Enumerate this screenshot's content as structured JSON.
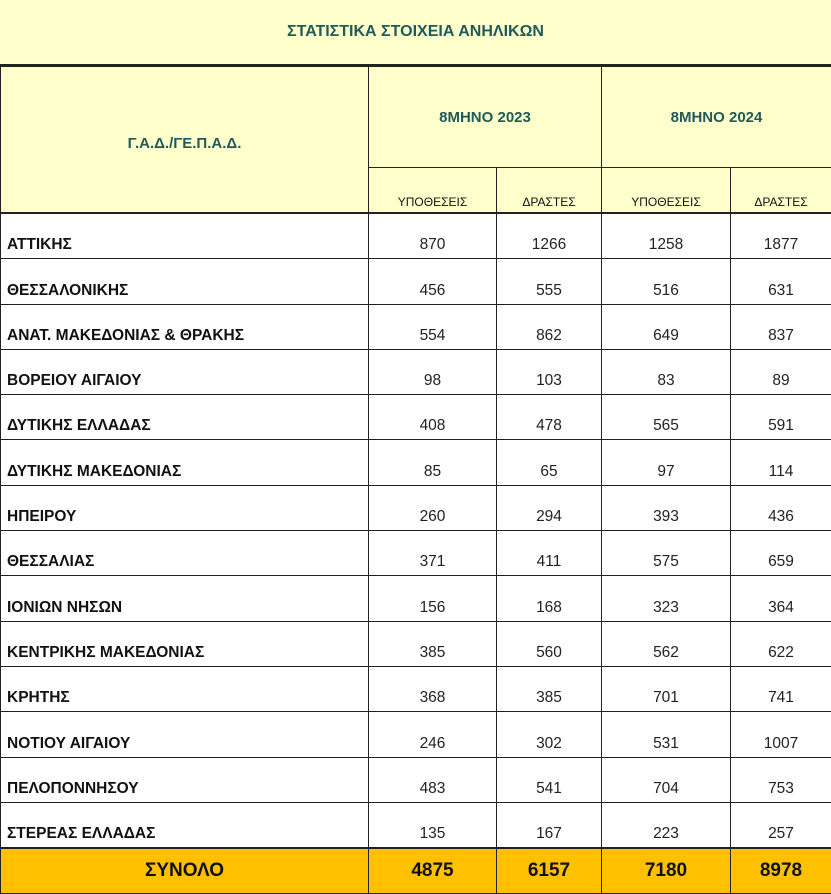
{
  "title": "ΣΤΑΤΙΣΤΙΚΑ ΣΤΟΙΧΕΙΑ ΑΝΗΛΙΚΩΝ",
  "header": {
    "region": "Γ.Α.Δ./ΓΕ.Π.Α.Δ.",
    "period_2023": "8ΜΗΝΟ 2023",
    "period_2024": "8ΜΗΝΟ 2024",
    "cases": "ΥΠΟΘΕΣΕΙΣ",
    "offenders": "ΔΡΑΣΤΕΣ"
  },
  "rows": [
    {
      "name": "ΑΤΤΙΚΗΣ",
      "v": [
        "870",
        "1266",
        "1258",
        "1877"
      ]
    },
    {
      "name": "ΘΕΣΣΑΛΟΝΙΚΗΣ",
      "v": [
        "456",
        "555",
        "516",
        "631"
      ]
    },
    {
      "name": "ΑΝΑΤ. ΜΑΚΕΔΟΝΙΑΣ & ΘΡΑΚΗΣ",
      "v": [
        "554",
        "862",
        "649",
        "837"
      ]
    },
    {
      "name": "ΒΟΡΕΙΟΥ ΑΙΓΑΙΟΥ",
      "v": [
        "98",
        "103",
        "83",
        "89"
      ]
    },
    {
      "name": "ΔΥΤΙΚΗΣ ΕΛΛΑΔΑΣ",
      "v": [
        "408",
        "478",
        "565",
        "591"
      ]
    },
    {
      "name": "ΔΥΤΙΚΗΣ ΜΑΚΕΔΟΝΙΑΣ",
      "v": [
        "85",
        "65",
        "97",
        "114"
      ]
    },
    {
      "name": "ΗΠΕΙΡΟΥ",
      "v": [
        "260",
        "294",
        "393",
        "436"
      ]
    },
    {
      "name": "ΘΕΣΣΑΛΙΑΣ",
      "v": [
        "371",
        "411",
        "575",
        "659"
      ]
    },
    {
      "name": "ΙΟΝΙΩΝ ΝΗΣΩΝ",
      "v": [
        "156",
        "168",
        "323",
        "364"
      ]
    },
    {
      "name": "ΚΕΝΤΡΙΚΗΣ ΜΑΚΕΔΟΝΙΑΣ",
      "v": [
        "385",
        "560",
        "562",
        "622"
      ]
    },
    {
      "name": "ΚΡΗΤΗΣ",
      "v": [
        "368",
        "385",
        "701",
        "741"
      ]
    },
    {
      "name": "ΝΟΤΙΟΥ ΑΙΓΑΙΟΥ",
      "v": [
        "246",
        "302",
        "531",
        "1007"
      ]
    },
    {
      "name": "ΠΕΛΟΠΟΝΝΗΣΟΥ",
      "v": [
        "483",
        "541",
        "704",
        "753"
      ]
    },
    {
      "name": "ΣΤΕΡΕΑΣ ΕΛΛΑΔΑΣ",
      "v": [
        "135",
        "167",
        "223",
        "257"
      ]
    }
  ],
  "total": {
    "label": "ΣΥΝΟΛΟ",
    "v": [
      "4875",
      "6157",
      "7180",
      "8978"
    ]
  },
  "colors": {
    "header_bg": "#ffffcc",
    "title_text": "#215a5a",
    "total_bg": "#ffc000"
  }
}
